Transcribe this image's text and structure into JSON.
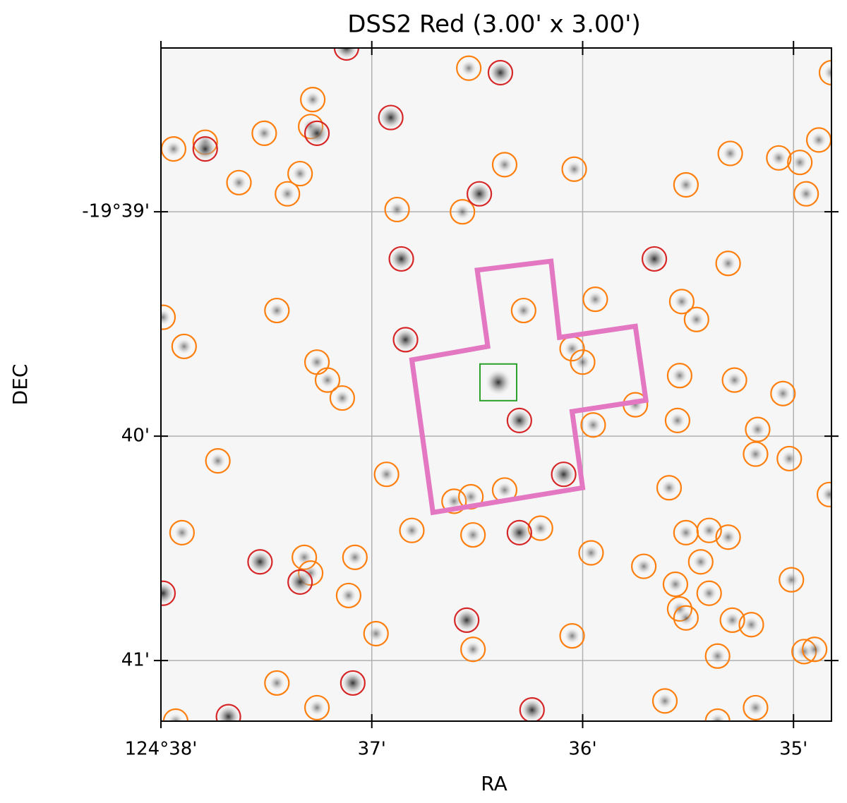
{
  "chart_data": {
    "type": "scatter",
    "title": "DSS2 Red (3.00' x 3.00')",
    "xlabel": "RA",
    "ylabel": "DEC",
    "xlim": [
      38,
      34.82
    ],
    "ylim": [
      41.27,
      38.27
    ],
    "xticks": [
      {
        "value": 38,
        "label": "124°38'"
      },
      {
        "value": 37,
        "label": "37'"
      },
      {
        "value": 36,
        "label": "36'"
      },
      {
        "value": 35,
        "label": "35'"
      }
    ],
    "yticks": [
      {
        "value": 39,
        "label": "-19°39'"
      },
      {
        "value": 40,
        "label": "40'"
      },
      {
        "value": 41,
        "label": "41'"
      }
    ],
    "grid": true,
    "series": [
      {
        "color": "#ff7f0e",
        "x": [
          37.94,
          37.79,
          37.51,
          37.28,
          37.29,
          37.34,
          37.4,
          37.63,
          36.54,
          36.37,
          36.04,
          36.88,
          36.57,
          35.3,
          35.07,
          34.97,
          34.88,
          35.51,
          34.94,
          34.82,
          37.99,
          37.89,
          37.45,
          37.26,
          37.21,
          37.14,
          36.28,
          35.94,
          36.05,
          36.0,
          35.53,
          35.46,
          35.31,
          35.54,
          35.28,
          35.05,
          35.75,
          35.55,
          35.95,
          35.17,
          35.18,
          35.02,
          34.83,
          37.73,
          36.93,
          36.37,
          36.61,
          36.53,
          36.52,
          36.81,
          36.2,
          37.9,
          35.59,
          35.51,
          35.4,
          35.31,
          35.96,
          35.44,
          35.71,
          35.01,
          35.56,
          35.4,
          35.54,
          35.51,
          35.29,
          35.2,
          37.32,
          37.29,
          37.08,
          37.11,
          36.98,
          36.52,
          36.05,
          35.36,
          34.95,
          34.9,
          37.45,
          37.26,
          35.61,
          35.18,
          37.93,
          35.36
        ],
        "y": [
          38.72,
          38.69,
          38.65,
          38.5,
          38.62,
          38.83,
          38.92,
          38.87,
          38.36,
          38.79,
          38.81,
          38.99,
          39.0,
          38.74,
          38.76,
          38.78,
          38.68,
          38.88,
          38.92,
          38.38,
          39.47,
          39.6,
          39.44,
          39.67,
          39.75,
          39.83,
          39.44,
          39.39,
          39.61,
          39.67,
          39.4,
          39.48,
          39.23,
          39.73,
          39.75,
          39.81,
          39.86,
          39.93,
          39.95,
          39.97,
          40.08,
          40.1,
          40.26,
          40.11,
          40.17,
          40.24,
          40.29,
          40.27,
          40.44,
          40.42,
          40.41,
          40.43,
          40.23,
          40.43,
          40.42,
          40.45,
          40.52,
          40.56,
          40.58,
          40.64,
          40.66,
          40.7,
          40.77,
          40.81,
          40.82,
          40.84,
          40.54,
          40.61,
          40.54,
          40.71,
          40.88,
          40.95,
          40.89,
          40.98,
          40.96,
          40.95,
          41.1,
          41.21,
          41.18,
          41.21,
          41.27,
          41.27
        ]
      },
      {
        "color": "#d62728",
        "x": [
          37.79,
          37.26,
          36.91,
          36.39,
          36.49,
          36.86,
          36.84,
          35.66,
          36.3,
          36.09,
          36.3,
          37.53,
          37.34,
          36.55,
          37.09,
          36.24,
          37.99,
          37.68,
          37.12
        ],
        "y": [
          38.72,
          38.65,
          38.58,
          38.38,
          38.92,
          39.21,
          39.57,
          39.21,
          39.93,
          40.17,
          40.43,
          40.56,
          40.65,
          40.82,
          41.1,
          41.22,
          40.7,
          41.25,
          38.27
        ]
      }
    ],
    "footprint": {
      "color": "#e377c2",
      "x": [
        36.5,
        36.15,
        36.11,
        35.75,
        35.7,
        36.05,
        36.0,
        36.71,
        36.81,
        36.45
      ],
      "y": [
        39.26,
        39.22,
        39.56,
        39.51,
        39.84,
        39.89,
        40.23,
        40.34,
        39.66,
        39.6
      ]
    },
    "target": {
      "color": "#2ca02c",
      "x": 36.4,
      "y": 39.76
    }
  }
}
